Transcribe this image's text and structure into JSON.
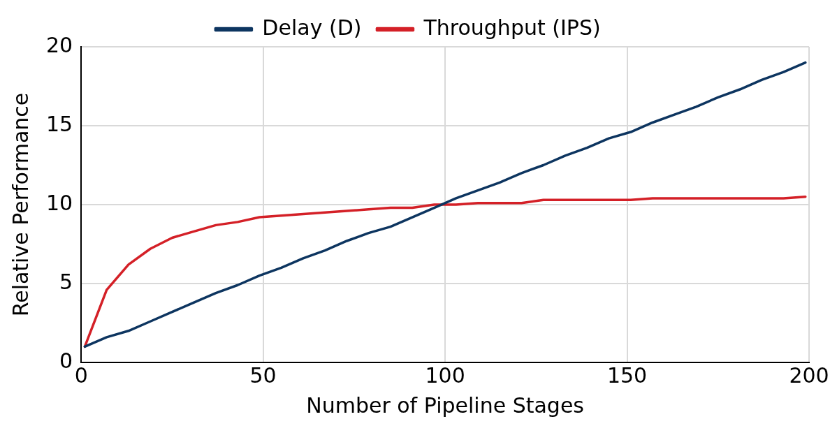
{
  "chart_data": {
    "type": "line",
    "xlabel": "Number of Pipeline Stages",
    "ylabel": "Relative Performance",
    "x": [
      1,
      7,
      13,
      19,
      25,
      31,
      37,
      43,
      49,
      55,
      61,
      67,
      73,
      79,
      85,
      91,
      97,
      103,
      109,
      115,
      121,
      127,
      133,
      139,
      145,
      151,
      157,
      163,
      169,
      175,
      181,
      187,
      193,
      199
    ],
    "series": [
      {
        "name": "Delay (D)",
        "color": "#0d3560",
        "values": [
          1,
          1.6,
          2.0,
          2.6,
          3.2,
          3.8,
          4.4,
          4.9,
          5.5,
          6.0,
          6.6,
          7.1,
          7.7,
          8.2,
          8.6,
          9.2,
          9.8,
          10.4,
          10.9,
          11.4,
          12.0,
          12.5,
          13.1,
          13.6,
          14.2,
          14.6,
          15.2,
          15.7,
          16.2,
          16.8,
          17.3,
          17.9,
          18.4,
          19.0
        ]
      },
      {
        "name": "Throughput (IPS)",
        "color": "#d42027",
        "values": [
          1,
          4.6,
          6.2,
          7.2,
          7.9,
          8.3,
          8.7,
          8.9,
          9.2,
          9.3,
          9.4,
          9.5,
          9.6,
          9.7,
          9.8,
          9.8,
          10.0,
          10.0,
          10.1,
          10.1,
          10.1,
          10.3,
          10.3,
          10.3,
          10.3,
          10.3,
          10.4,
          10.4,
          10.4,
          10.4,
          10.4,
          10.4,
          10.4,
          10.5
        ]
      }
    ],
    "xlim": [
      0,
      200
    ],
    "xticks": [
      0,
      50,
      100,
      150,
      200
    ],
    "ylim": [
      0,
      20
    ],
    "yticks": [
      0,
      5,
      10,
      15,
      20
    ],
    "grid": true,
    "legend": "top",
    "marker": "none",
    "line_style": "solid"
  }
}
